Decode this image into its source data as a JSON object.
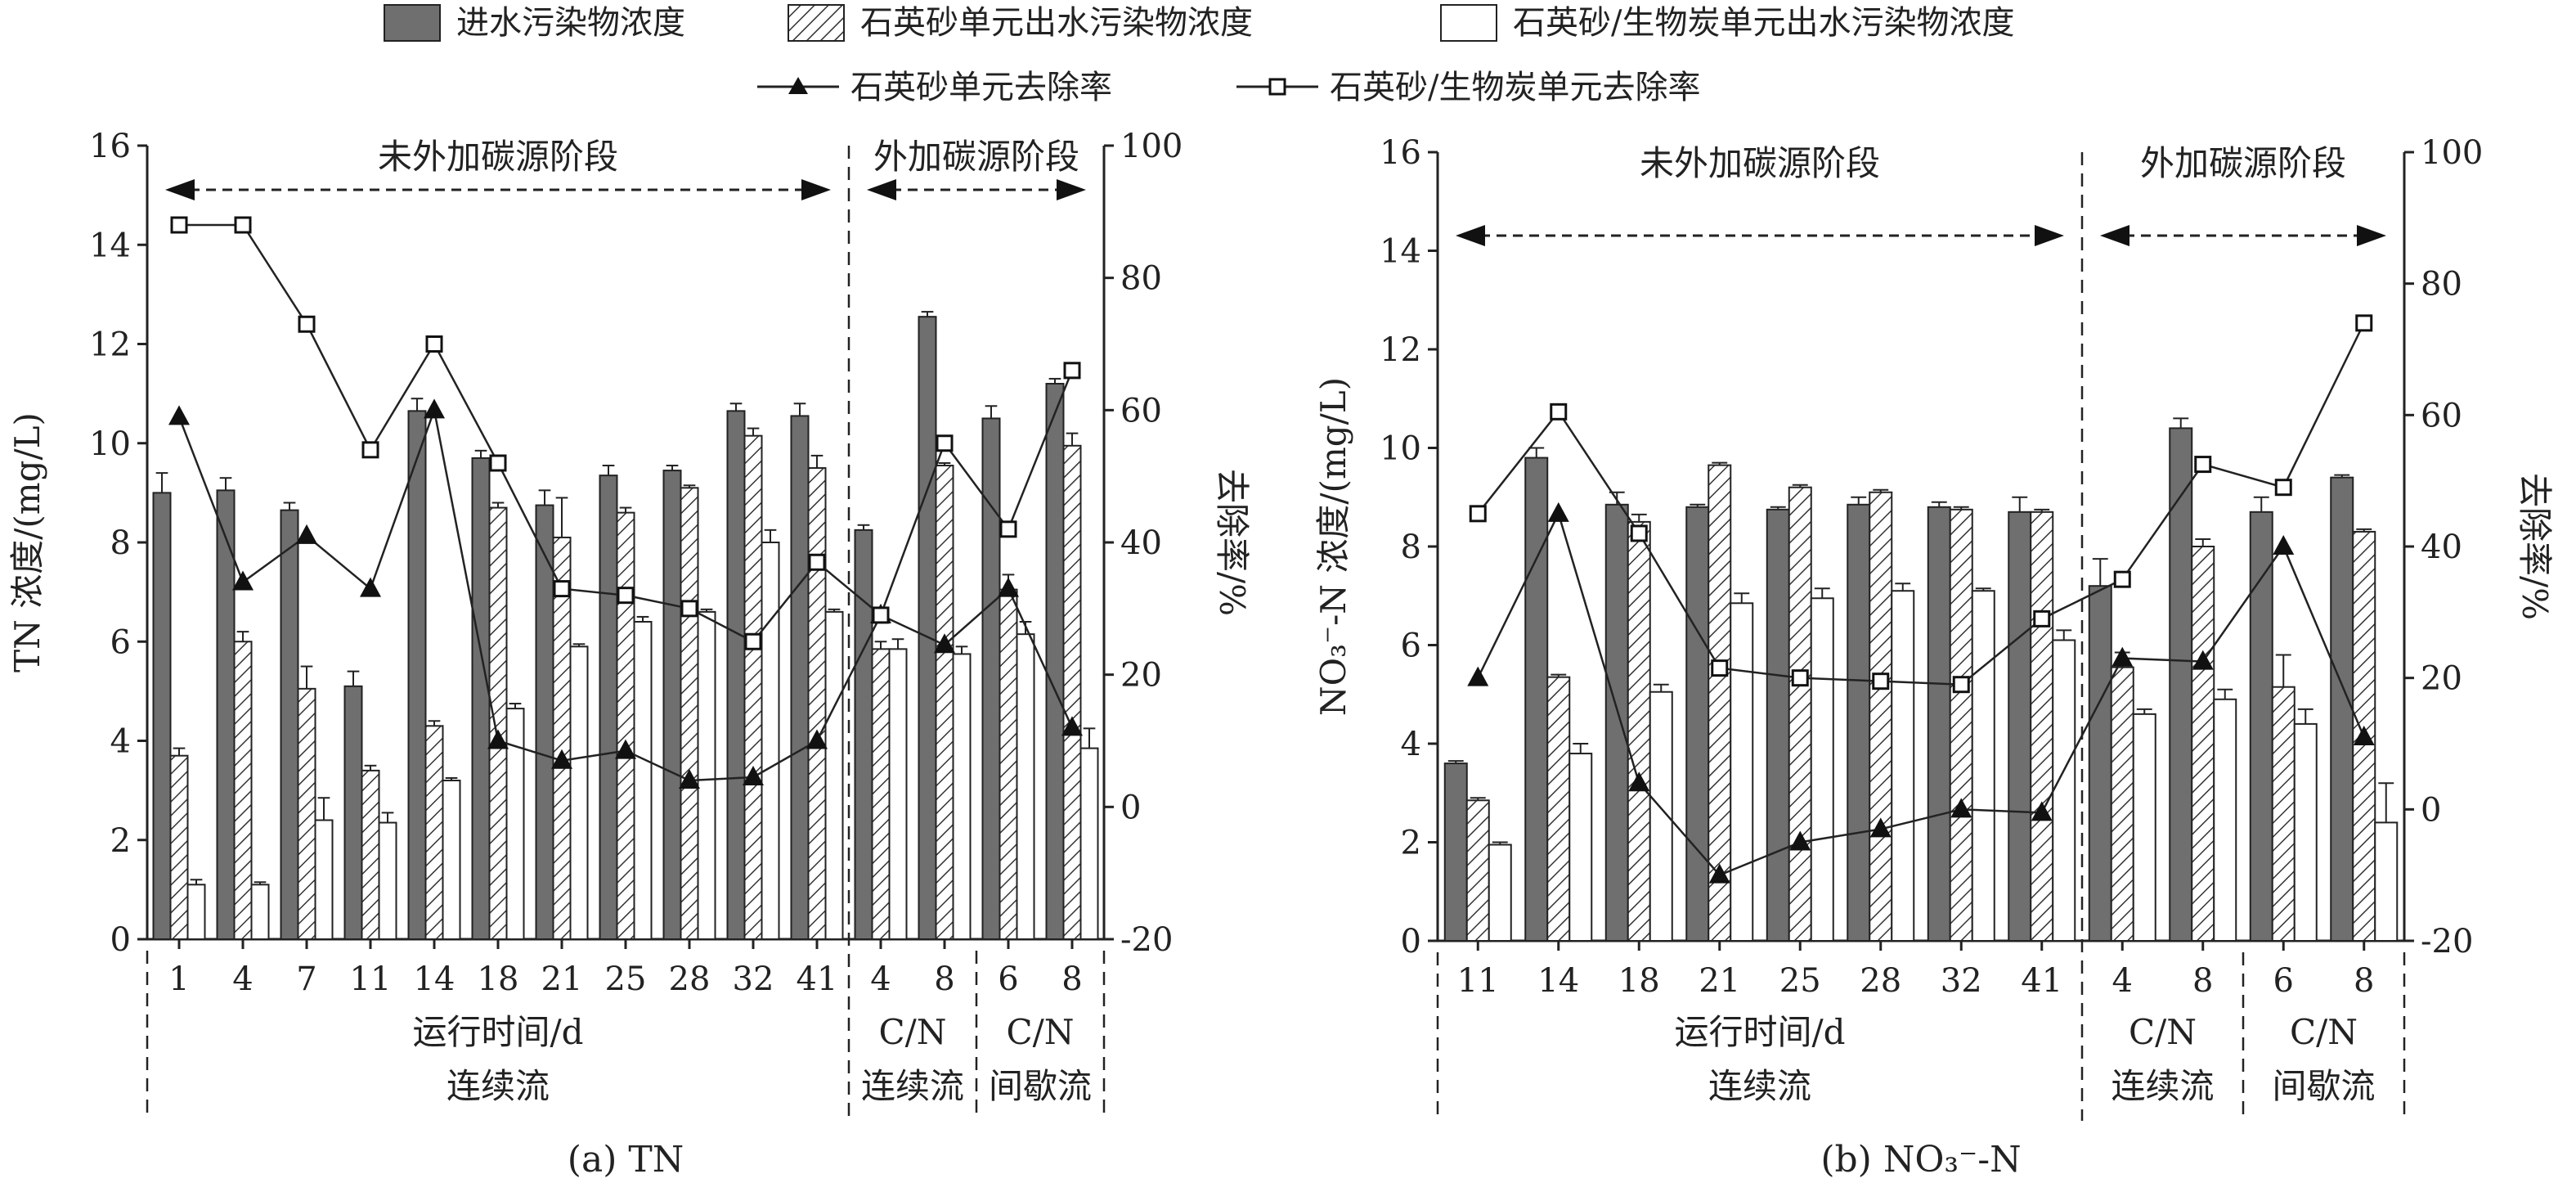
{
  "legend": {
    "bars": [
      {
        "label": "进水污染物浓度",
        "style": "solid",
        "color": "#6f6f6f"
      },
      {
        "label": "石英砂单元出水污染物浓度",
        "style": "hatch",
        "color": "#ffffff"
      },
      {
        "label": "石英砂/生物炭单元出水污染物浓度",
        "style": "open",
        "color": "#ffffff"
      }
    ],
    "lines": [
      {
        "label": "石英砂单元去除率",
        "marker": "filled-triangle"
      },
      {
        "label": "石英砂/生物炭单元去除率",
        "marker": "open-square"
      }
    ]
  },
  "chart_data": [
    {
      "type": "bar",
      "caption": "(a) TN",
      "ylabel": "TN 浓度/(mg/L)",
      "y2label": "去除率/%",
      "ylim": [
        0,
        16
      ],
      "yticks": [
        0,
        2,
        4,
        6,
        8,
        10,
        12,
        14,
        16
      ],
      "y2lim": [
        -20,
        100
      ],
      "y2ticks": [
        -20,
        0,
        20,
        40,
        60,
        80,
        100
      ],
      "categories": [
        "1",
        "4",
        "7",
        "11",
        "14",
        "18",
        "21",
        "25",
        "28",
        "32",
        "41",
        "4",
        "8",
        "6",
        "8"
      ],
      "phase1_count": 11,
      "group_sizes": [
        11,
        2,
        2
      ],
      "phases": [
        "未外加碳源阶段",
        "外加碳源阶段"
      ],
      "group_labels": [
        [
          "运行时间/d",
          "连续流"
        ],
        [
          "C/N",
          "连续流"
        ],
        [
          "C/N",
          "间歇流"
        ]
      ],
      "series": [
        {
          "name": "进水污染物浓度",
          "values": [
            9.0,
            9.05,
            8.65,
            5.1,
            10.65,
            9.7,
            8.75,
            9.35,
            9.45,
            10.65,
            10.55,
            8.25,
            12.55,
            10.5,
            11.2
          ],
          "errors": [
            0.4,
            0.25,
            0.15,
            0.3,
            0.25,
            0.15,
            0.3,
            0.2,
            0.1,
            0.15,
            0.25,
            0.1,
            0.1,
            0.25,
            0.1
          ]
        },
        {
          "name": "石英砂单元出水污染物浓度",
          "values": [
            3.7,
            6.0,
            5.05,
            3.4,
            4.3,
            8.7,
            8.1,
            8.6,
            9.1,
            10.15,
            9.5,
            5.85,
            9.55,
            7.05,
            9.95
          ],
          "errors": [
            0.15,
            0.2,
            0.45,
            0.1,
            0.1,
            0.1,
            0.8,
            0.1,
            0.05,
            0.15,
            0.25,
            0.15,
            0.05,
            0.3,
            0.25
          ]
        },
        {
          "name": "石英砂/生物炭单元出水污染物浓度",
          "values": [
            1.1,
            1.1,
            2.4,
            2.35,
            3.2,
            4.65,
            5.9,
            6.4,
            6.6,
            8.0,
            6.6,
            5.85,
            5.75,
            6.15,
            3.85
          ],
          "errors": [
            0.1,
            0.05,
            0.45,
            0.2,
            0.05,
            0.1,
            0.05,
            0.1,
            0.05,
            0.25,
            0.05,
            0.2,
            0.15,
            0.25,
            0.4
          ]
        },
        {
          "name": "石英砂单元去除率",
          "axis": "right",
          "values": [
            59,
            34,
            41,
            33,
            60,
            10,
            7,
            8.5,
            4,
            4.5,
            10,
            29,
            24.5,
            33,
            12
          ]
        },
        {
          "name": "石英砂/生物炭单元去除率",
          "axis": "right",
          "values": [
            88,
            88,
            73,
            54,
            70,
            52,
            33,
            32,
            30,
            25,
            37,
            29,
            55,
            42,
            66
          ]
        }
      ]
    },
    {
      "type": "bar",
      "caption": "(b) NO₃⁻-N",
      "ylabel": "NO₃⁻-N 浓度/(mg/L)",
      "y2label": "去除率/%",
      "ylim": [
        0,
        16
      ],
      "yticks": [
        0,
        2,
        4,
        6,
        8,
        10,
        12,
        14,
        16
      ],
      "y2lim": [
        -20,
        100
      ],
      "y2ticks": [
        -20,
        0,
        20,
        40,
        60,
        80,
        100
      ],
      "categories": [
        "11",
        "14",
        "18",
        "21",
        "25",
        "28",
        "32",
        "41",
        "4",
        "8",
        "6",
        "8"
      ],
      "phase1_count": 8,
      "group_sizes": [
        8,
        2,
        2
      ],
      "phases": [
        "未外加碳源阶段",
        "外加碳源阶段"
      ],
      "group_labels": [
        [
          "运行时间/d",
          "连续流"
        ],
        [
          "C/N",
          "连续流"
        ],
        [
          "C/N",
          "间歇流"
        ]
      ],
      "series": [
        {
          "name": "进水污染物浓度",
          "values": [
            3.6,
            9.8,
            8.85,
            8.8,
            8.75,
            8.85,
            8.8,
            8.7,
            7.2,
            10.4,
            8.7,
            9.4
          ],
          "errors": [
            0.05,
            0.2,
            0.25,
            0.05,
            0.05,
            0.15,
            0.1,
            0.3,
            0.55,
            0.2,
            0.3,
            0.05
          ]
        },
        {
          "name": "石英砂单元出水污染物浓度",
          "values": [
            2.85,
            5.35,
            8.5,
            9.65,
            9.2,
            9.1,
            8.75,
            8.7,
            5.55,
            8.0,
            5.15,
            8.3
          ],
          "errors": [
            0.05,
            0.05,
            0.15,
            0.05,
            0.05,
            0.05,
            0.05,
            0.05,
            0.3,
            0.15,
            0.65,
            0.05
          ]
        },
        {
          "name": "石英砂/生物炭单元出水污染物浓度",
          "values": [
            1.95,
            3.8,
            5.05,
            6.85,
            6.95,
            7.1,
            7.1,
            6.1,
            4.6,
            4.9,
            4.4,
            2.4
          ],
          "errors": [
            0.05,
            0.2,
            0.15,
            0.2,
            0.2,
            0.15,
            0.05,
            0.2,
            0.1,
            0.2,
            0.3,
            0.8
          ]
        },
        {
          "name": "石英砂单元去除率",
          "axis": "right",
          "values": [
            20,
            45,
            4,
            -10,
            -5,
            -3,
            0,
            -0.5,
            23,
            22.5,
            40,
            11
          ]
        },
        {
          "name": "石英砂/生物炭单元去除率",
          "axis": "right",
          "values": [
            45,
            60.5,
            42,
            21.5,
            20,
            19.5,
            19,
            29,
            35,
            52.5,
            49,
            74
          ]
        }
      ]
    }
  ]
}
